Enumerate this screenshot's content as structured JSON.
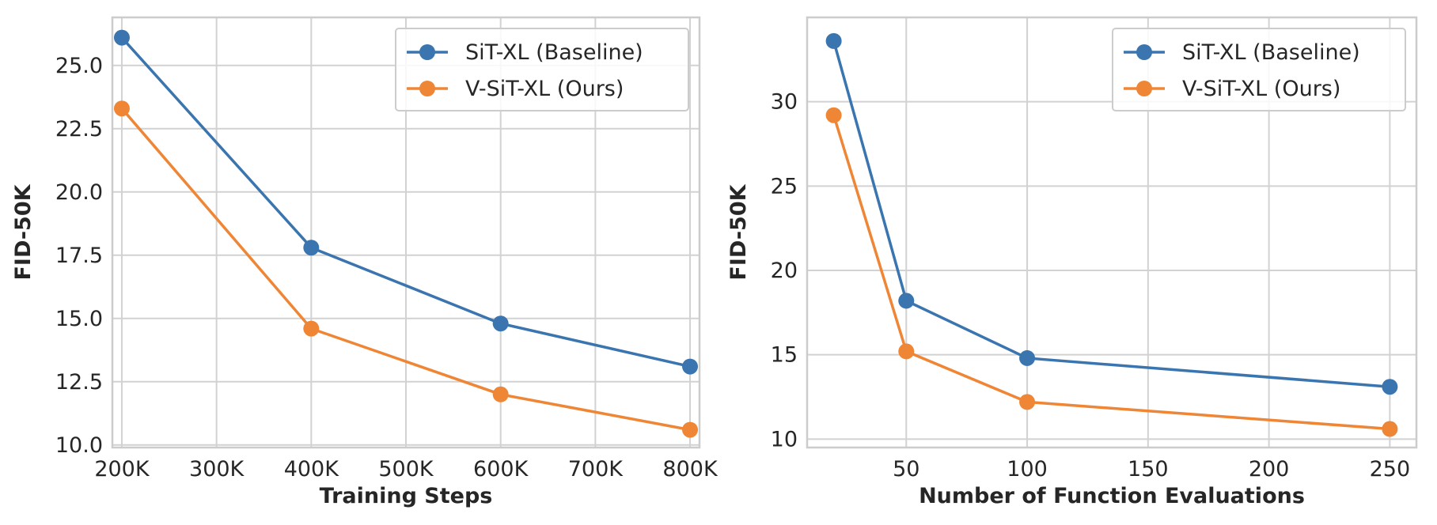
{
  "colors": {
    "baseline": "#3a75af",
    "ours": "#ef8636"
  },
  "chart_data": [
    {
      "type": "line",
      "xlabel": "Training Steps",
      "ylabel": "FID-50K",
      "x": [
        200000,
        400000,
        600000,
        800000
      ],
      "xlim": [
        190000,
        810000
      ],
      "ylim": [
        9.9,
        26.9
      ],
      "xticks": [
        200000,
        300000,
        400000,
        500000,
        600000,
        700000,
        800000
      ],
      "xtick_labels": [
        "200K",
        "300K",
        "400K",
        "500K",
        "600K",
        "700K",
        "800K"
      ],
      "yticks": [
        10.0,
        12.5,
        15.0,
        17.5,
        20.0,
        22.5,
        25.0
      ],
      "ytick_labels": [
        "10.0",
        "12.5",
        "15.0",
        "17.5",
        "20.0",
        "22.5",
        "25.0"
      ],
      "grid": true,
      "legend_position": "top-right",
      "series": [
        {
          "name": "SiT-XL (Baseline)",
          "color_key": "baseline",
          "values": [
            26.1,
            17.8,
            14.8,
            13.1
          ]
        },
        {
          "name": "V-SiT-XL (Ours)",
          "color_key": "ours",
          "values": [
            23.3,
            14.6,
            12.0,
            10.6
          ]
        }
      ]
    },
    {
      "type": "line",
      "xlabel": "Number of Function Evaluations",
      "ylabel": "FID-50K",
      "x": [
        20,
        50,
        100,
        250
      ],
      "xlim": [
        9,
        261
      ],
      "ylim": [
        9.5,
        35.0
      ],
      "xticks": [
        50,
        100,
        150,
        200,
        250
      ],
      "xtick_labels": [
        "50",
        "100",
        "150",
        "200",
        "250"
      ],
      "yticks": [
        10,
        15,
        20,
        25,
        30
      ],
      "ytick_labels": [
        "10",
        "15",
        "20",
        "25",
        "30"
      ],
      "grid": true,
      "legend_position": "top-right",
      "series": [
        {
          "name": "SiT-XL (Baseline)",
          "color_key": "baseline",
          "values": [
            33.6,
            18.2,
            14.8,
            13.1
          ]
        },
        {
          "name": "V-SiT-XL (Ours)",
          "color_key": "ours",
          "values": [
            29.2,
            15.2,
            12.2,
            10.6
          ]
        }
      ]
    }
  ]
}
